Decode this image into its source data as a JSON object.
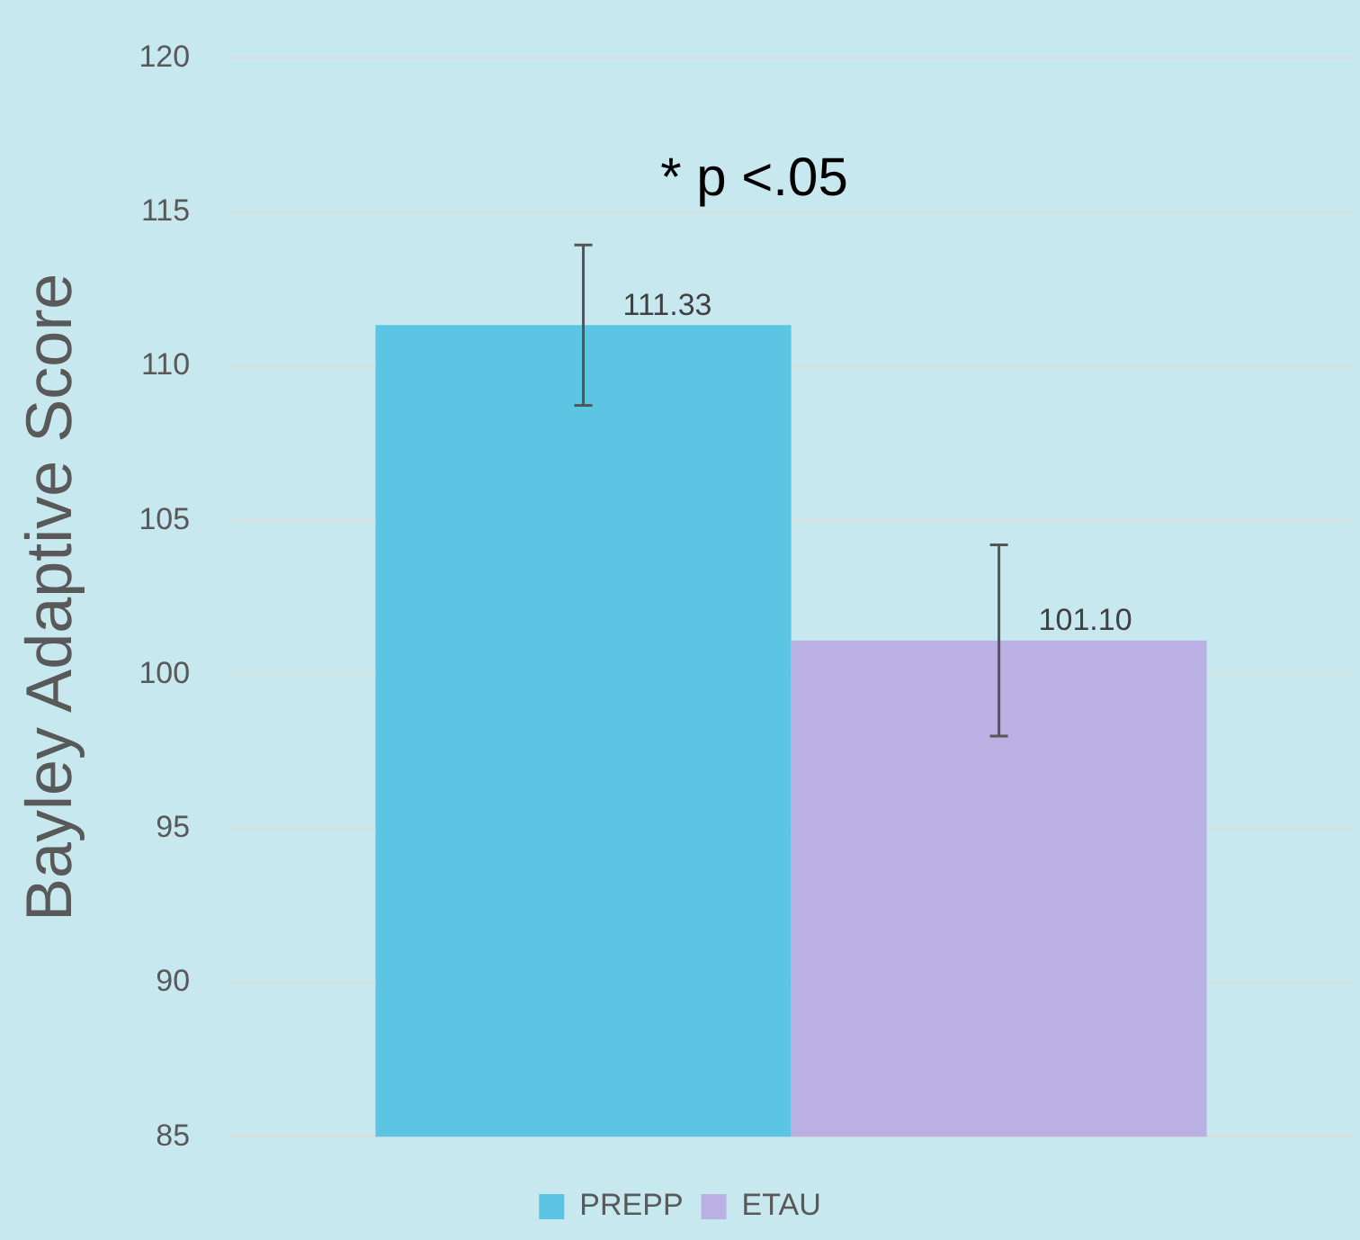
{
  "chart_data": {
    "type": "bar",
    "ylabel": "Bayley Adaptive Score",
    "categories": [
      null
    ],
    "series": [
      {
        "name": "PREPP",
        "color": "#5bc5e3",
        "values": [
          111.33
        ],
        "errors": [
          2.6
        ],
        "value_labels": [
          "111.33"
        ]
      },
      {
        "name": "ETAU",
        "color": "#bbb0e3",
        "values": [
          101.1
        ],
        "errors": [
          3.1
        ],
        "value_labels": [
          "101.10"
        ]
      }
    ],
    "ylim": [
      85,
      120
    ],
    "yticks": [
      85,
      90,
      95,
      100,
      105,
      110,
      115,
      120
    ],
    "grid": "y",
    "legend": "bottom",
    "annotations": [
      "* p <.05"
    ]
  }
}
